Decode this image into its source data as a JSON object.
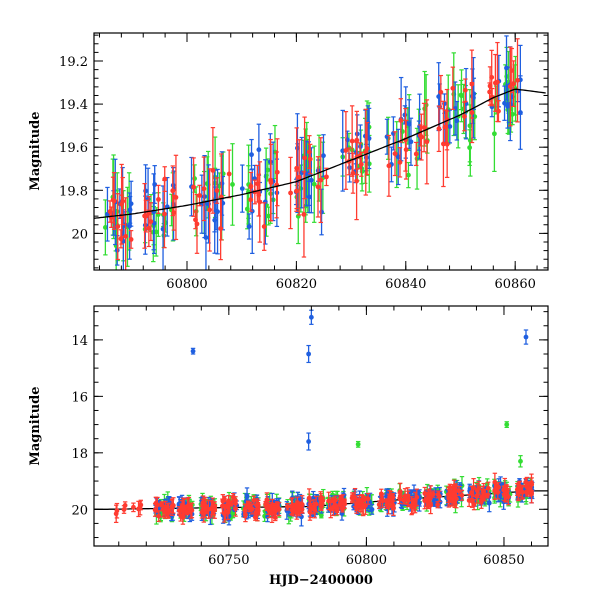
{
  "chart_data": [
    {
      "type": "scatter",
      "title": "",
      "xlabel": "",
      "ylabel": "Magnitude",
      "xlim": [
        60783,
        60866
      ],
      "ylim": [
        20.17,
        19.07
      ],
      "y_inverted": true,
      "x_ticks": [
        60800,
        60820,
        60840,
        60860
      ],
      "y_ticks": [
        19.2,
        19.4,
        19.6,
        19.8,
        20
      ],
      "x_tick_labels": [
        "60800",
        "60820",
        "60840",
        "60860"
      ],
      "y_tick_labels": [
        "19.2",
        "19.4",
        "19.6",
        "19.8",
        "20"
      ],
      "legend": "none",
      "grid": false,
      "series_colors": {
        "green": "#33dd33",
        "blue": "#1f5fe0",
        "red": "#ff3b30"
      },
      "model_curve_color": "#000000",
      "model_curve": {
        "x": [
          60783,
          60790,
          60800,
          60810,
          60820,
          60830,
          60840,
          60850,
          60856,
          60860,
          60866
        ],
        "y": [
          19.93,
          19.91,
          19.87,
          19.82,
          19.76,
          19.66,
          19.56,
          19.45,
          19.37,
          19.33,
          19.35
        ]
      }
    },
    {
      "type": "scatter",
      "title": "",
      "xlabel": "HJD−2400000",
      "ylabel": "Magnitude",
      "xlim": [
        60701,
        60866
      ],
      "ylim": [
        21.3,
        12.8
      ],
      "y_inverted": true,
      "x_ticks": [
        60750,
        60800,
        60850
      ],
      "y_ticks": [
        14,
        16,
        18,
        20
      ],
      "x_tick_labels": [
        "60750",
        "60800",
        "60850"
      ],
      "y_tick_labels": [
        "14",
        "16",
        "18",
        "20"
      ],
      "legend": "none",
      "grid": false,
      "series_colors": {
        "green": "#33dd33",
        "blue": "#1f5fe0",
        "red": "#ff3b30"
      },
      "model_curve_color": "#000000",
      "model_curve": {
        "x": [
          60705,
          60740,
          60780,
          60820,
          60860
        ],
        "y": [
          20.0,
          19.95,
          19.9,
          19.6,
          19.35
        ]
      },
      "outliers": [
        {
          "series": "blue",
          "x": 60737,
          "y": 14.4,
          "err": 0.1
        },
        {
          "series": "blue",
          "x": 60779,
          "y": 14.5,
          "err": 0.3
        },
        {
          "series": "blue",
          "x": 60780,
          "y": 13.2,
          "err": 0.25
        },
        {
          "series": "blue",
          "x": 60779,
          "y": 17.6,
          "err": 0.3
        },
        {
          "series": "blue",
          "x": 60858,
          "y": 13.9,
          "err": 0.25
        },
        {
          "series": "green",
          "x": 60797,
          "y": 17.7,
          "err": 0.1
        },
        {
          "series": "green",
          "x": 60851,
          "y": 17.0,
          "err": 0.1
        },
        {
          "series": "green",
          "x": 60856,
          "y": 18.3,
          "err": 0.2
        }
      ]
    }
  ]
}
